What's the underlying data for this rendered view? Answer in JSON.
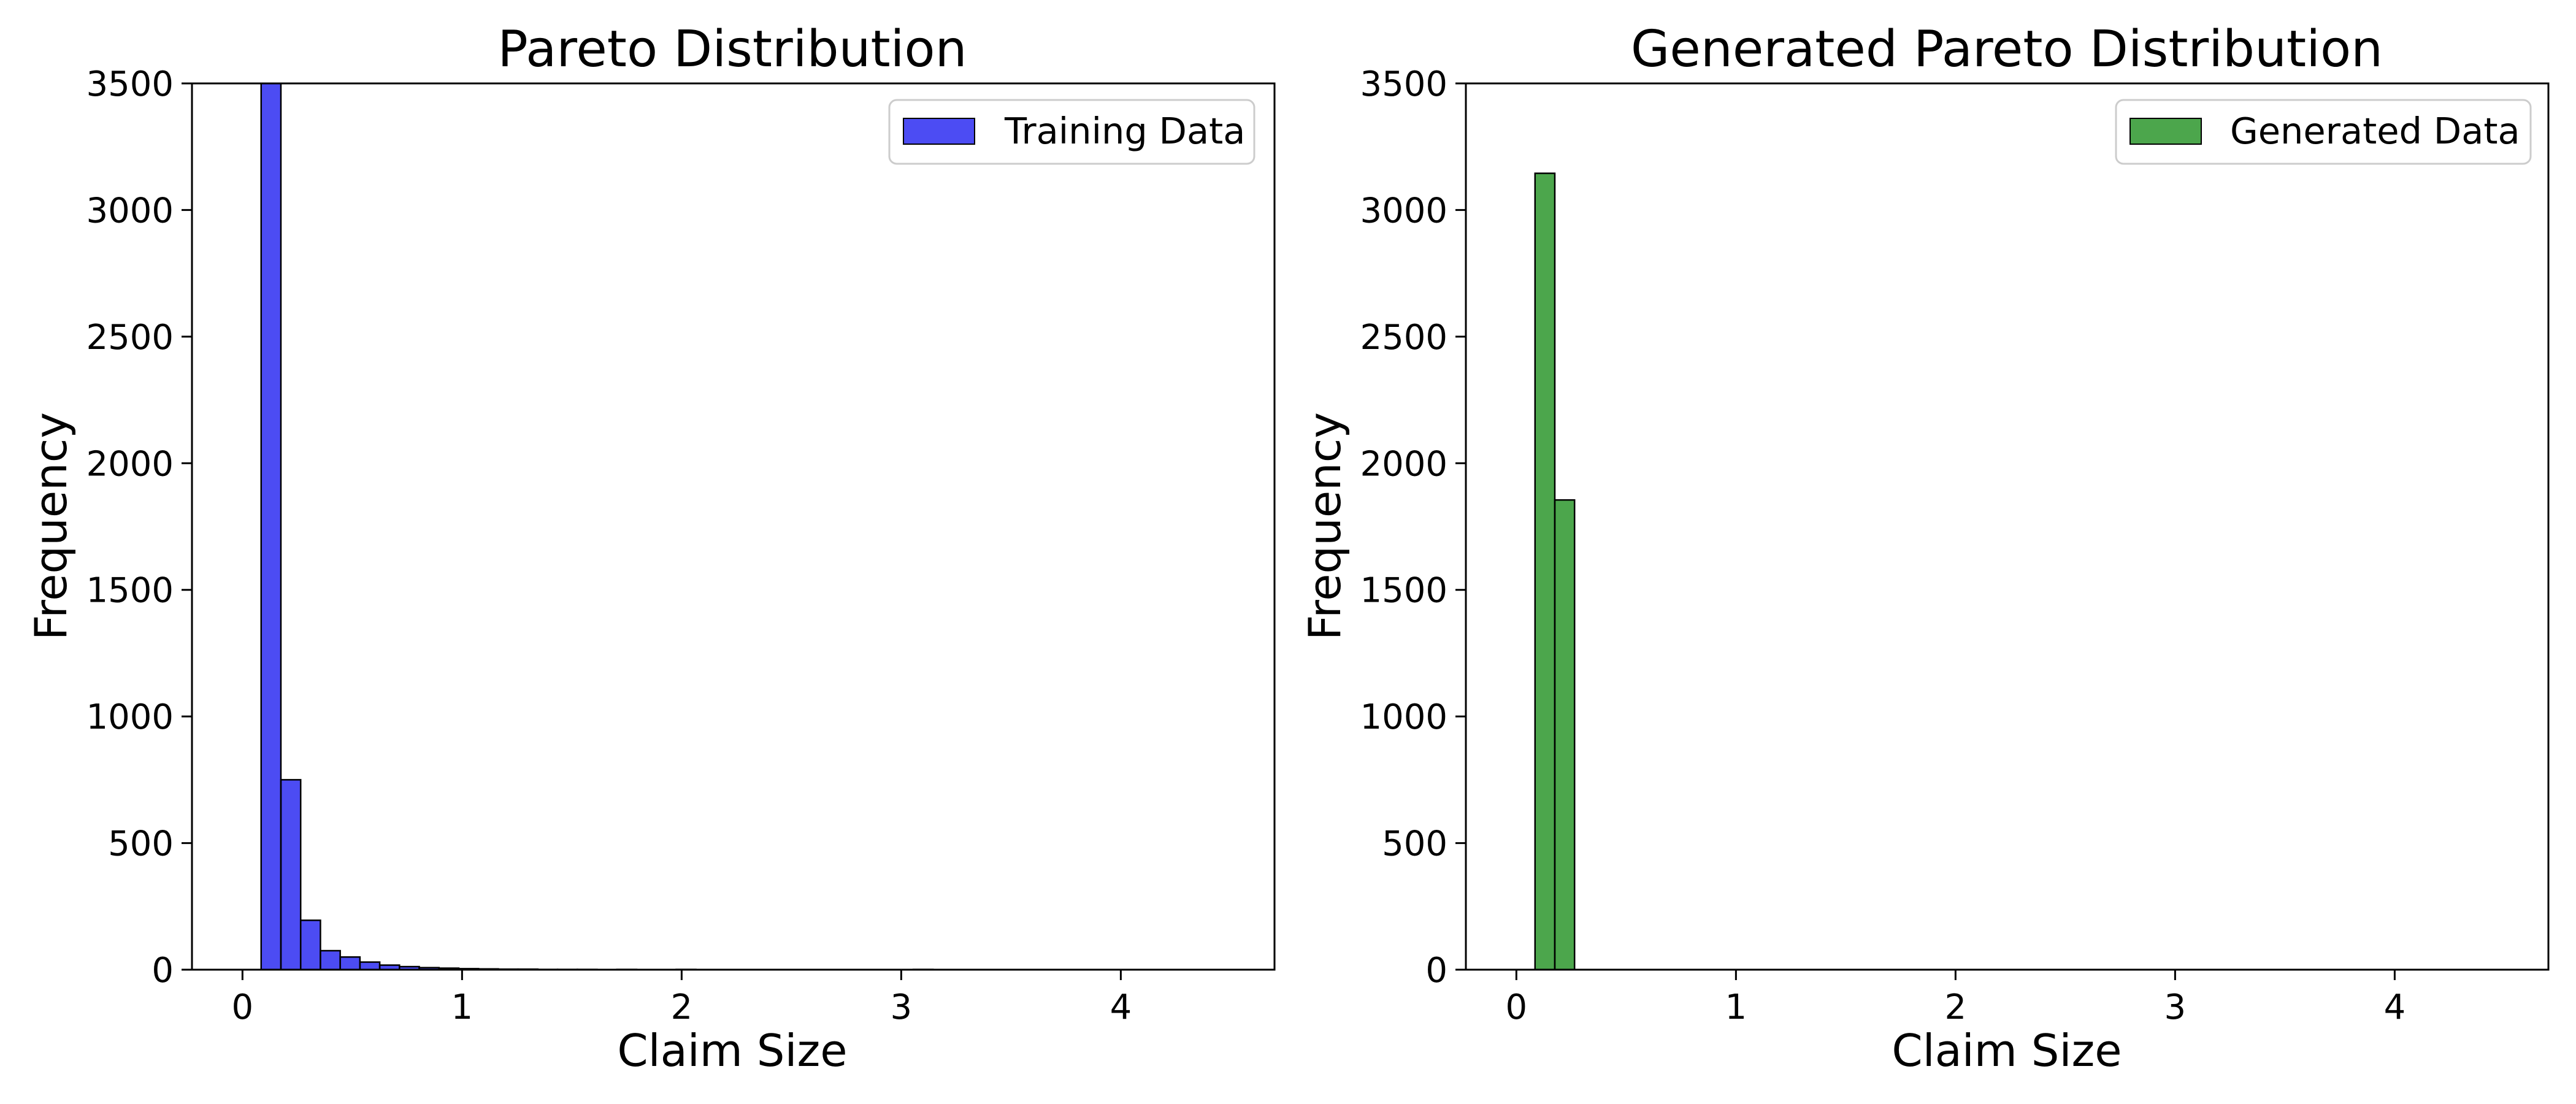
{
  "chart_data": [
    {
      "type": "bar",
      "title": "Pareto Distribution",
      "xlabel": "Claim Size",
      "ylabel": "Frequency",
      "xlim": [
        -0.23,
        4.7
      ],
      "ylim": [
        0,
        3500
      ],
      "xticks": [
        0,
        1,
        2,
        3,
        4
      ],
      "yticks": [
        0,
        500,
        1000,
        1500,
        2000,
        2500,
        3000,
        3500
      ],
      "grid": false,
      "legend_position": "top-right",
      "series": [
        {
          "name": "Training Data",
          "color": "#0000ee",
          "opacity": 0.7,
          "bin_edges": [
            0.085,
            0.175,
            0.265,
            0.355,
            0.445,
            0.535,
            0.625,
            0.715,
            0.805,
            0.895,
            0.985,
            1.075,
            1.165,
            1.255,
            1.345,
            1.435,
            1.525,
            1.615,
            1.705,
            1.795,
            1.885,
            1.975,
            2.065,
            2.155,
            2.245,
            2.335,
            2.425,
            2.515,
            2.605,
            2.695,
            2.785,
            2.875,
            2.965,
            3.055,
            3.145,
            3.235,
            3.325,
            3.415,
            3.505,
            3.595,
            3.685,
            3.775,
            3.865,
            3.955,
            4.045,
            4.135,
            4.225,
            4.315,
            4.405,
            4.495
          ],
          "values": [
            3500,
            750,
            195,
            75,
            50,
            30,
            18,
            12,
            8,
            6,
            4,
            3,
            2,
            2,
            1,
            1,
            1,
            0,
            1,
            0,
            0,
            1,
            0,
            0,
            0,
            0,
            0,
            0,
            0,
            0,
            0,
            0,
            0,
            1,
            0,
            0,
            0,
            0,
            0,
            0,
            0,
            0,
            0,
            0,
            0,
            0,
            0,
            0,
            0
          ]
        }
      ]
    },
    {
      "type": "bar",
      "title": "Generated Pareto Distribution",
      "xlabel": "Claim Size",
      "ylabel": "Frequency",
      "xlim": [
        -0.23,
        4.7
      ],
      "ylim": [
        0,
        3500
      ],
      "xticks": [
        0,
        1,
        2,
        3,
        4
      ],
      "yticks": [
        0,
        500,
        1000,
        1500,
        2000,
        2500,
        3000,
        3500
      ],
      "grid": false,
      "legend_position": "top-right",
      "series": [
        {
          "name": "Generated Data",
          "color": "#008000",
          "opacity": 0.7,
          "bin_edges": [
            0.085,
            0.175,
            0.265,
            0.355,
            0.445,
            0.535,
            0.625,
            0.715,
            0.805,
            0.895,
            0.985,
            1.075,
            1.165,
            1.255,
            1.345,
            1.435,
            1.525,
            1.615,
            1.705,
            1.795,
            1.885,
            1.975,
            2.065,
            2.155,
            2.245,
            2.335,
            2.425,
            2.515,
            2.605,
            2.695,
            2.785,
            2.875,
            2.965,
            3.055,
            3.145,
            3.235,
            3.325,
            3.415,
            3.505,
            3.595,
            3.685,
            3.775,
            3.865,
            3.955,
            4.045,
            4.135,
            4.225,
            4.315,
            4.405,
            4.495
          ],
          "values": [
            3145,
            1855,
            0,
            0,
            0,
            0,
            0,
            0,
            0,
            0,
            0,
            0,
            0,
            0,
            0,
            0,
            0,
            0,
            0,
            0,
            0,
            0,
            0,
            0,
            0,
            0,
            0,
            0,
            0,
            0,
            0,
            0,
            0,
            0,
            0,
            0,
            0,
            0,
            0,
            0,
            0,
            0,
            0,
            0,
            0,
            0,
            0,
            0,
            0
          ]
        }
      ]
    }
  ]
}
